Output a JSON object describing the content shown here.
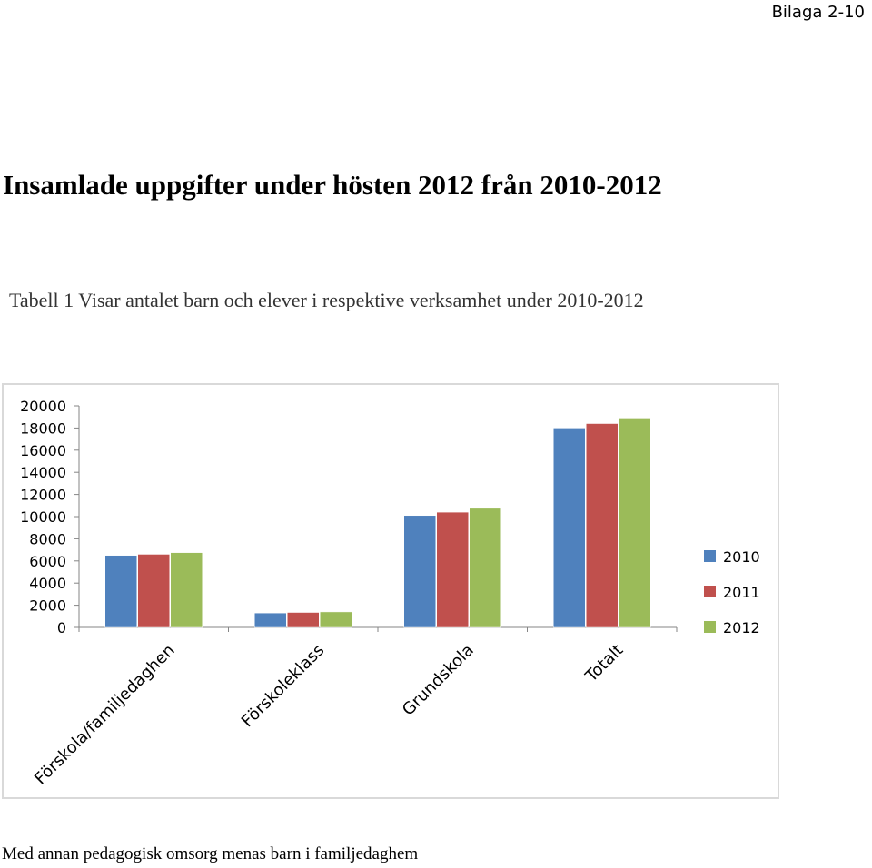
{
  "header": {
    "appendix_label": "Bilaga 2-10"
  },
  "title": "Insamlade uppgifter under hösten 2012 från 2010-2012",
  "caption": "Tabell 1 Visar antalet barn och elever i respektive verksamhet under 2010-2012",
  "footnote": "Med annan pedagogisk omsorg menas barn i familjedaghem",
  "chart_data": {
    "type": "bar",
    "categories": [
      "Förskola/familjedaghen",
      "Förskoleklass",
      "Grundskola",
      "Totalt"
    ],
    "series": [
      {
        "name": "2010",
        "color": "#4f81bd",
        "values": [
          6500,
          1300,
          10100,
          18000
        ]
      },
      {
        "name": "2011",
        "color": "#c0504d",
        "values": [
          6600,
          1350,
          10400,
          18400
        ]
      },
      {
        "name": "2012",
        "color": "#9bbb59",
        "values": [
          6750,
          1400,
          10750,
          18900
        ]
      }
    ],
    "ylim": [
      0,
      20000
    ],
    "yticks": [
      "0",
      "2000",
      "4000",
      "6000",
      "8000",
      "10000",
      "12000",
      "14000",
      "16000",
      "18000",
      "20000"
    ],
    "grid": false,
    "legend": "right"
  }
}
